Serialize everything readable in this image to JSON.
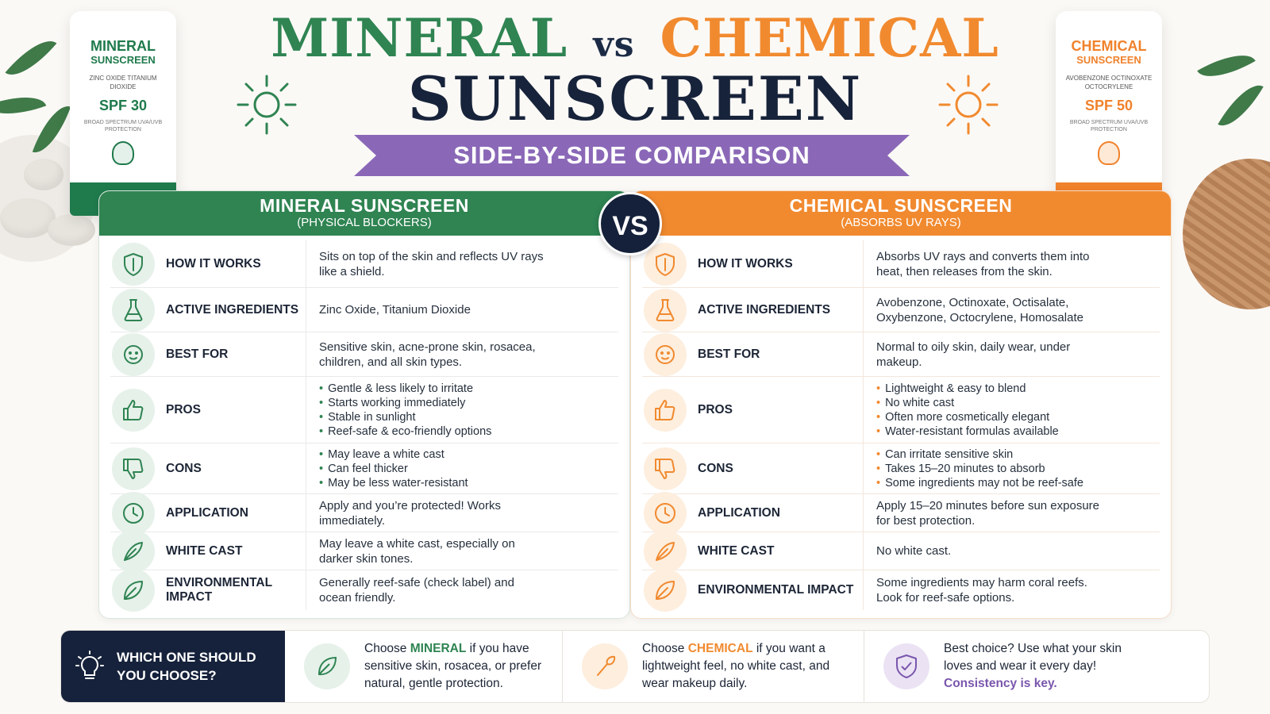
{
  "title": {
    "mineral": "MINERAL",
    "vs": "vs",
    "chemical": "CHEMICAL",
    "line2": "SUNSCREEN"
  },
  "ribbon": "SIDE-BY-SIDE COMPARISON",
  "vs_badge": "VS",
  "colors": {
    "mineral": "#2f8452",
    "chemical": "#f18a2f",
    "navy": "#16223b",
    "purple": "#8a68b7"
  },
  "tubes": {
    "mineral": {
      "line1": "MINERAL",
      "line2": "SUNSCREEN",
      "ingredients": "ZINC OXIDE TITANIUM DIOXIDE",
      "spf": "SPF 30",
      "note": "BROAD SPECTRUM UVA/UVB PROTECTION"
    },
    "chemical": {
      "line1": "CHEMICAL",
      "line2": "SUNSCREEN",
      "ingredients": "AVOBENZONE OCTINOXATE OCTOCRYLENE",
      "spf": "SPF 50",
      "note": "BROAD SPECTRUM UVA/UVB PROTECTION"
    }
  },
  "mineral": {
    "heading": "MINERAL SUNSCREEN",
    "subheading": "(PHYSICAL BLOCKERS)",
    "rows": [
      {
        "icon": "shield-icon",
        "label": "HOW IT WORKS",
        "text": "Sits on top of the skin and reflects UV rays like a shield."
      },
      {
        "icon": "flask-icon",
        "label": "ACTIVE INGREDIENTS",
        "text": "Zinc Oxide, Titanium Dioxide"
      },
      {
        "icon": "face-icon",
        "label": "BEST FOR",
        "text": "Sensitive skin, acne-prone skin, rosacea, children, and all skin types."
      },
      {
        "icon": "thumbs-up-icon",
        "label": "PROS",
        "bullets": [
          "Gentle & less likely to irritate",
          "Starts working immediately",
          "Stable in sunlight",
          "Reef-safe & eco-friendly options"
        ]
      },
      {
        "icon": "thumbs-down-icon",
        "label": "CONS",
        "bullets": [
          "May leave a white cast",
          "Can feel thicker",
          "May be less water-resistant"
        ]
      },
      {
        "icon": "clock-icon",
        "label": "APPLICATION",
        "text": "Apply and you’re protected! Works immediately."
      },
      {
        "icon": "feather-icon",
        "label": "WHITE CAST",
        "text": "May leave a white cast, especially on darker skin tones."
      },
      {
        "icon": "leaf-icon",
        "label": "ENVIRONMENTAL IMPACT",
        "text": "Generally reef-safe (check label) and ocean friendly."
      }
    ]
  },
  "chemical": {
    "heading": "CHEMICAL SUNSCREEN",
    "subheading": "(ABSORBS UV RAYS)",
    "rows": [
      {
        "icon": "shield-icon",
        "label": "HOW IT WORKS",
        "text": "Absorbs UV rays and converts them into heat, then releases from the skin."
      },
      {
        "icon": "flask-icon",
        "label": "ACTIVE INGREDIENTS",
        "text": "Avobenzone, Octinoxate, Octisalate, Oxybenzone, Octocrylene, Homosalate"
      },
      {
        "icon": "face-icon",
        "label": "BEST FOR",
        "text": "Normal to oily skin, daily wear, under makeup."
      },
      {
        "icon": "thumbs-up-icon",
        "label": "PROS",
        "bullets": [
          "Lightweight & easy to blend",
          "No white cast",
          "Often more cosmetically elegant",
          "Water-resistant formulas available"
        ]
      },
      {
        "icon": "thumbs-down-icon",
        "label": "CONS",
        "bullets": [
          "Can irritate sensitive skin",
          "Takes 15–20 minutes to absorb",
          "Some ingredients may not be reef-safe"
        ]
      },
      {
        "icon": "clock-icon",
        "label": "APPLICATION",
        "text": "Apply 15–20 minutes before sun exposure for best protection."
      },
      {
        "icon": "feather-icon",
        "label": "WHITE CAST",
        "text": "No white cast."
      },
      {
        "icon": "leaf-icon",
        "label": "ENVIRONMENTAL IMPACT",
        "text": "Some ingredients may harm coral reefs. Look for reef-safe options."
      }
    ]
  },
  "footer": {
    "question": "WHICH ONE SHOULD YOU CHOOSE?",
    "mineral": {
      "pre": "Choose ",
      "keyword": "MINERAL",
      "post": " if you have sensitive skin, rosacea, or prefer natural, gentle protection."
    },
    "chemical": {
      "pre": "Choose ",
      "keyword": "CHEMICAL",
      "post": " if you want a lightweight feel, no white cast, and wear makeup daily."
    },
    "best": {
      "text": "Best choice? Use what your skin loves and wear it every day! ",
      "keyword": "Consistency is key."
    }
  }
}
